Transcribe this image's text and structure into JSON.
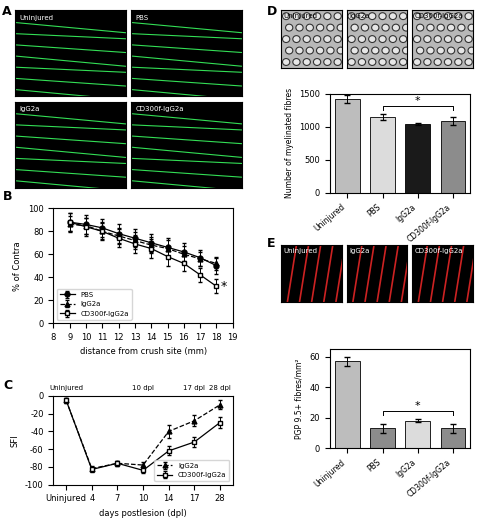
{
  "image_panels": [
    {
      "panel": "A",
      "labels": [
        "Uninjured",
        "PBS",
        "IgG2a",
        "CD300f-IgG2a"
      ]
    },
    {
      "panel": "D",
      "labels": [
        "Uninjured",
        "IgG2a",
        "CD300f-IgG2a"
      ]
    },
    {
      "panel": "E",
      "labels": [
        "Uninjured",
        "IgG2a",
        "CD300f-IgG2a"
      ]
    }
  ],
  "chart_data": [
    {
      "panel": "B",
      "type": "line",
      "x": [
        9,
        10,
        11,
        12,
        13,
        14,
        15,
        16,
        17,
        18
      ],
      "xlim": [
        8,
        19
      ],
      "xticks": [
        8,
        9,
        10,
        11,
        12,
        13,
        14,
        15,
        16,
        17,
        18,
        19
      ],
      "ylim": [
        0,
        100
      ],
      "yticks": [
        0,
        20,
        40,
        60,
        80,
        100
      ],
      "x_label": "distance from crush site (mm)",
      "y_label": "% of Contra",
      "legend": "lower left",
      "series": [
        {
          "name": "PBS",
          "color": "#000000",
          "marker": "circle",
          "line_style": "solid",
          "values": [
            88,
            86,
            83,
            78,
            74,
            70,
            66,
            62,
            57,
            50
          ],
          "errors": [
            8,
            8,
            8,
            8,
            8,
            8,
            8,
            8,
            7,
            7
          ]
        },
        {
          "name": "IgG2a",
          "color": "#000000",
          "marker": "triangle",
          "line_style": "dashed",
          "values": [
            86,
            85,
            80,
            76,
            72,
            68,
            65,
            60,
            56,
            52
          ],
          "errors": [
            7,
            7,
            7,
            7,
            7,
            7,
            7,
            7,
            6,
            6
          ]
        },
        {
          "name": "CD300f-IgG2a",
          "color": "#000000",
          "marker": "open_square",
          "line_style": "solid",
          "values": [
            88,
            84,
            80,
            74,
            69,
            65,
            58,
            52,
            42,
            32
          ],
          "errors": [
            8,
            8,
            8,
            8,
            8,
            8,
            8,
            7,
            6,
            6
          ]
        }
      ],
      "annotations": [
        {
          "x": 18,
          "text": "*"
        }
      ]
    },
    {
      "panel": "C",
      "type": "line",
      "categories": [
        "Uninjured",
        "4",
        "7",
        "10",
        "14",
        "17",
        "28"
      ],
      "ylim": [
        -100,
        0
      ],
      "yticks": [
        -100,
        -80,
        -60,
        -40,
        -20,
        0
      ],
      "x_label": "days postlesion (dpl)",
      "y_label": "SFI",
      "legend": "lower right",
      "series": [
        {
          "name": "IgG2a",
          "color": "#000000",
          "marker": "triangle",
          "line_style": "dashed",
          "values": [
            -5,
            -82,
            -76,
            -78,
            -40,
            -28,
            -10
          ],
          "errors": [
            3,
            3,
            3,
            4,
            7,
            6,
            5
          ]
        },
        {
          "name": "CD300f-IgG2a",
          "color": "#000000",
          "marker": "open_square",
          "line_style": "solid",
          "values": [
            -5,
            -83,
            -76,
            -84,
            -62,
            -52,
            -30
          ],
          "errors": [
            3,
            3,
            3,
            3,
            5,
            6,
            6
          ]
        }
      ],
      "annotations": [
        {
          "category": "Uninjured",
          "text": "Uninjured"
        },
        {
          "category": "10",
          "text": "10 dpl"
        },
        {
          "category": "17",
          "text": "17 dpl"
        },
        {
          "category": "28",
          "text": "28 dpl"
        }
      ]
    },
    {
      "type": "bar",
      "categories": [
        "Uninjured",
        "PBS",
        "IgG2a",
        "CD300f-IgG2a"
      ],
      "values": [
        1420,
        1150,
        1040,
        1090
      ],
      "errors": [
        60,
        40,
        15,
        60
      ],
      "colors": [
        "#bdbdbd",
        "#dcdcdc",
        "#1a1a1a",
        "#8c8c8c"
      ],
      "ylim": [
        0,
        1500
      ],
      "yticks": [
        0,
        500,
        1000,
        1500
      ],
      "y_label": "Number of myelinated fibres",
      "annotations": [
        {
          "from": "PBS",
          "to": "CD300f-IgG2a",
          "text": "*"
        }
      ]
    },
    {
      "type": "bar",
      "categories": [
        "Uninjured",
        "PBS",
        "IgG2a",
        "CD300f-IgG2a"
      ],
      "values": [
        57,
        13,
        18,
        13
      ],
      "errors": [
        3,
        3,
        1,
        3
      ],
      "colors": [
        "#bdbdbd",
        "#8c8c8c",
        "#dcdcdc",
        "#8c8c8c"
      ],
      "ylim": [
        0,
        65
      ],
      "yticks": [
        0,
        20,
        40,
        60
      ],
      "y_label": "PGP 9.5+ fibres/mm²",
      "annotations": [
        {
          "from": "PBS",
          "to": "CD300f-IgG2a",
          "text": "*"
        }
      ]
    }
  ]
}
